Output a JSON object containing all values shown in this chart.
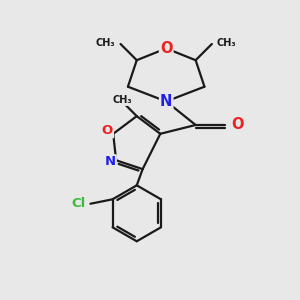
{
  "bg_color": "#e8e8e8",
  "bond_color": "#1a1a1a",
  "N_color": "#2020ee",
  "O_color": "#ee2020",
  "Cl_color": "#3dbb3d",
  "lw": 1.6,
  "fs": 9.5,
  "xlim": [
    0,
    10
  ],
  "ylim": [
    0,
    10
  ]
}
